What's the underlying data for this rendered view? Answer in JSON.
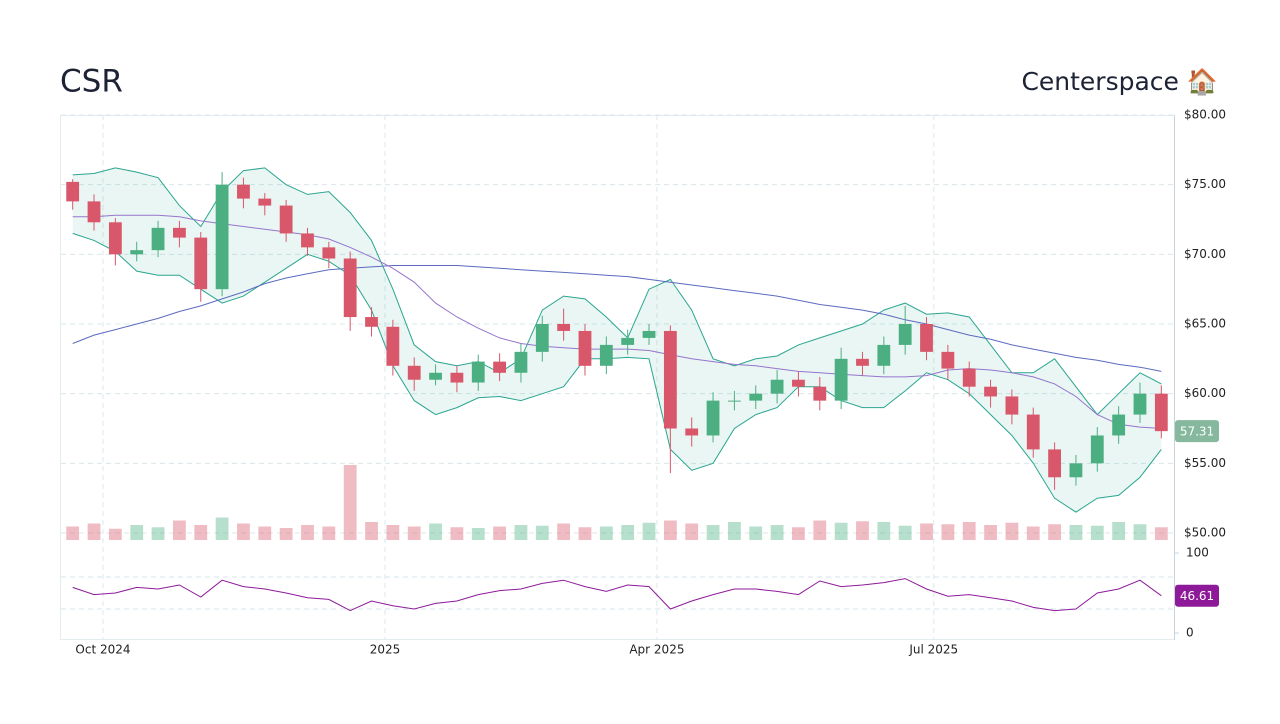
{
  "chart_data": {
    "type": "candlestick",
    "title": "CSR",
    "subtitle": "Centerspace 🏠",
    "ylim": [
      50,
      80
    ],
    "yticks": [
      {
        "value": 50,
        "label": "$50.00"
      },
      {
        "value": 55,
        "label": "$55.00"
      },
      {
        "value": 60,
        "label": "$60.00"
      },
      {
        "value": 65,
        "label": "$65.00"
      },
      {
        "value": 70,
        "label": "$70.00"
      },
      {
        "value": 75,
        "label": "$75.00"
      },
      {
        "value": 80,
        "label": "$80.00"
      }
    ],
    "xticks": [
      {
        "value": 1.42,
        "label": "Oct 2024"
      },
      {
        "value": 14.63,
        "label": "2025"
      },
      {
        "value": 27.37,
        "label": "Apr 2025"
      },
      {
        "value": 40.34,
        "label": "Jul 2025"
      }
    ],
    "grid": true,
    "up_color": "#4caf82",
    "down_color": "#d9576a",
    "ohlc": {
      "open": [
        75.2,
        73.8,
        72.3,
        70.0,
        70.3,
        71.9,
        71.2,
        67.5,
        75.0,
        74.0,
        73.5,
        71.5,
        70.5,
        69.7,
        65.5,
        64.8,
        62.0,
        61.0,
        61.5,
        60.8,
        62.3,
        61.5,
        63.0,
        65.0,
        64.5,
        62.0,
        63.5,
        64.0,
        64.5,
        57.5,
        57.0,
        59.5,
        59.5,
        60.0,
        61.0,
        60.5,
        59.5,
        62.5,
        62.0,
        63.5,
        65.0,
        63.0,
        61.8,
        60.5,
        59.8,
        58.5,
        56.0,
        54.0,
        55.0,
        57.0,
        58.5,
        60.0
      ],
      "high": [
        75.4,
        74.3,
        72.6,
        70.9,
        72.4,
        72.4,
        71.6,
        75.9,
        75.5,
        74.4,
        73.9,
        71.9,
        70.9,
        70.2,
        66.2,
        65.3,
        62.6,
        62.1,
        62.0,
        62.8,
        62.9,
        63.6,
        65.6,
        66.1,
        65.0,
        64.1,
        64.6,
        65.0,
        64.9,
        58.3,
        60.1,
        60.2,
        60.6,
        61.7,
        61.6,
        61.2,
        63.3,
        63.0,
        64.1,
        66.3,
        65.5,
        63.5,
        62.3,
        61.0,
        60.3,
        59.0,
        56.5,
        55.6,
        57.6,
        59.1,
        60.8,
        60.6
      ],
      "low": [
        73.2,
        71.7,
        69.2,
        69.5,
        69.8,
        70.5,
        66.6,
        67.0,
        73.3,
        72.8,
        70.9,
        69.9,
        69.0,
        64.5,
        64.1,
        61.3,
        60.2,
        60.6,
        60.1,
        60.2,
        60.9,
        60.8,
        62.3,
        63.8,
        61.3,
        61.4,
        62.8,
        63.5,
        54.3,
        56.2,
        56.5,
        58.8,
        58.9,
        59.3,
        59.8,
        58.8,
        58.9,
        61.3,
        61.4,
        62.8,
        62.4,
        61.0,
        59.8,
        59.0,
        57.8,
        55.4,
        53.1,
        53.4,
        54.4,
        56.4,
        57.9,
        56.8
      ],
      "close": [
        73.8,
        72.3,
        70.0,
        70.3,
        71.9,
        71.2,
        67.5,
        75.0,
        74.0,
        73.5,
        71.5,
        70.5,
        69.7,
        65.5,
        64.8,
        62.0,
        61.0,
        61.5,
        60.8,
        62.3,
        61.5,
        63.0,
        65.0,
        64.5,
        62.0,
        63.5,
        64.0,
        64.5,
        57.5,
        57.0,
        59.5,
        59.5,
        60.0,
        61.0,
        60.5,
        59.5,
        62.5,
        62.0,
        63.5,
        65.0,
        63.0,
        61.8,
        60.5,
        59.8,
        58.5,
        56.0,
        54.0,
        55.0,
        57.0,
        58.5,
        60.0,
        57.31
      ]
    },
    "bands": {
      "color": "#2aa58f",
      "upper": [
        75.7,
        75.8,
        76.2,
        75.9,
        75.5,
        73.5,
        72.0,
        74.5,
        76.0,
        76.2,
        75.0,
        74.3,
        74.5,
        73.0,
        71.0,
        67.5,
        63.5,
        62.3,
        62.0,
        62.3,
        61.5,
        62.5,
        66.0,
        67.0,
        66.8,
        65.5,
        64.0,
        67.5,
        68.2,
        66.0,
        62.5,
        62.0,
        62.5,
        62.7,
        63.5,
        64.0,
        64.5,
        65.0,
        66.0,
        66.5,
        65.7,
        65.8,
        65.5,
        63.5,
        61.5,
        61.5,
        62.5,
        60.5,
        58.5,
        60.0,
        61.5,
        60.7
      ],
      "lower": [
        71.5,
        71.0,
        70.2,
        68.8,
        68.5,
        68.5,
        67.5,
        66.5,
        67.0,
        68.0,
        69.0,
        70.0,
        69.5,
        68.5,
        66.0,
        62.0,
        59.5,
        58.5,
        59.0,
        59.7,
        59.8,
        59.5,
        60.0,
        60.5,
        62.5,
        62.5,
        62.6,
        62.5,
        56.0,
        54.5,
        55.0,
        57.5,
        58.5,
        59.0,
        60.5,
        60.5,
        59.5,
        59.0,
        59.0,
        60.2,
        61.5,
        61.0,
        60.0,
        58.5,
        57.0,
        55.0,
        52.5,
        51.5,
        52.5,
        52.7,
        54.0,
        56.0
      ]
    },
    "lines": [
      {
        "color": "#5c6bc0",
        "values": [
          63.6,
          64.2,
          64.6,
          65.0,
          65.4,
          65.9,
          66.3,
          66.8,
          67.3,
          67.9,
          68.3,
          68.6,
          68.9,
          69.0,
          69.1,
          69.2,
          69.2,
          69.2,
          69.2,
          69.1,
          69.0,
          68.9,
          68.8,
          68.7,
          68.6,
          68.5,
          68.4,
          68.2,
          68.0,
          67.8,
          67.6,
          67.4,
          67.2,
          67.0,
          66.7,
          66.4,
          66.2,
          66.0,
          65.7,
          65.3,
          65.0,
          64.6,
          64.2,
          63.9,
          63.5,
          63.2,
          62.9,
          62.6,
          62.4,
          62.1,
          61.9,
          61.6
        ]
      },
      {
        "color": "#9575cd",
        "values": [
          72.7,
          72.7,
          72.8,
          72.8,
          72.8,
          72.7,
          72.4,
          72.2,
          72.0,
          71.8,
          71.6,
          71.4,
          71.1,
          70.5,
          69.8,
          69.0,
          68.0,
          66.5,
          65.5,
          64.7,
          64.0,
          63.6,
          63.4,
          63.3,
          63.2,
          63.2,
          63.2,
          63.1,
          62.8,
          62.5,
          62.3,
          62.1,
          62.0,
          61.8,
          61.6,
          61.5,
          61.4,
          61.3,
          61.2,
          61.2,
          61.3,
          61.7,
          61.8,
          61.7,
          61.5,
          61.2,
          60.7,
          59.8,
          58.5,
          57.8,
          57.6,
          57.5
        ]
      }
    ],
    "volume": {
      "ylim": [
        0,
        1000
      ],
      "values": [
        180,
        220,
        150,
        200,
        170,
        260,
        200,
        300,
        220,
        180,
        160,
        200,
        180,
        1000,
        240,
        200,
        180,
        220,
        170,
        160,
        180,
        200,
        190,
        220,
        170,
        180,
        200,
        230,
        260,
        220,
        200,
        240,
        180,
        200,
        170,
        260,
        230,
        250,
        240,
        190,
        220,
        210,
        240,
        200,
        230,
        180,
        210,
        200,
        190,
        240,
        210,
        170
      ]
    },
    "rsi": {
      "color": "#8e1a9a",
      "ylim": [
        0,
        100
      ],
      "yticks": [
        0,
        100
      ],
      "values": [
        57,
        48,
        50,
        57,
        55,
        60,
        45,
        66,
        58,
        55,
        50,
        44,
        42,
        28,
        40,
        34,
        30,
        37,
        40,
        48,
        53,
        55,
        62,
        66,
        58,
        52,
        60,
        58,
        30,
        40,
        48,
        55,
        55,
        52,
        48,
        65,
        58,
        60,
        63,
        68,
        55,
        46,
        48,
        44,
        40,
        32,
        28,
        30,
        50,
        55,
        66,
        46.61
      ]
    }
  }
}
